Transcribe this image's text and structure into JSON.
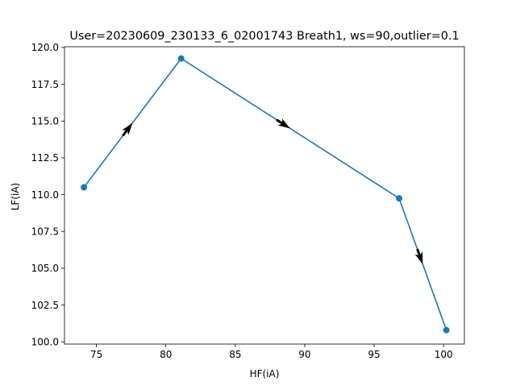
{
  "chart_data": {
    "type": "line",
    "title": "User=20230609_230133_6_02001743 Breath1, ws=90,outlier=0.1",
    "xlabel": "HF(iA)",
    "ylabel": "LF(iA)",
    "xlim": [
      72.7,
      101.5
    ],
    "ylim": [
      99.85,
      120.05
    ],
    "x_ticks": [
      75,
      80,
      85,
      90,
      95,
      100
    ],
    "x_tick_labels": [
      "75",
      "80",
      "85",
      "90",
      "95",
      "100"
    ],
    "y_ticks": [
      100.0,
      102.5,
      105.0,
      107.5,
      110.0,
      112.5,
      115.0,
      117.5,
      120.0
    ],
    "y_tick_labels": [
      "100.0",
      "102.5",
      "105.0",
      "107.5",
      "110.0",
      "112.5",
      "115.0",
      "117.5",
      "120.0"
    ],
    "grid": false,
    "markers": true,
    "direction_arrows": true,
    "series": [
      {
        "color": "#1f77b4",
        "points": [
          {
            "x": 74.1,
            "y": 110.5
          },
          {
            "x": 81.1,
            "y": 119.25
          },
          {
            "x": 96.8,
            "y": 109.75
          },
          {
            "x": 100.2,
            "y": 100.8
          }
        ]
      }
    ],
    "arrow_color": "#000000"
  }
}
